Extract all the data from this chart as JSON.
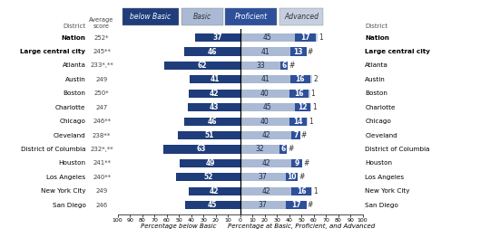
{
  "districts": [
    "Nation",
    "Large central city",
    "Atlanta",
    "Austin",
    "Boston",
    "Charlotte",
    "Chicago",
    "Cleveland",
    "District of Columbia",
    "Houston",
    "Los Angeles",
    "New York City",
    "San Diego"
  ],
  "avg_scores": [
    "252*",
    "245**",
    "233*,**",
    "249",
    "250*",
    "247",
    "246**",
    "238**",
    "232*,**",
    "241**",
    "240**",
    "249",
    "246"
  ],
  "bold_rows": [
    0,
    1
  ],
  "below_basic": [
    37,
    46,
    62,
    41,
    42,
    43,
    46,
    51,
    63,
    49,
    52,
    42,
    45
  ],
  "basic": [
    45,
    41,
    33,
    41,
    40,
    45,
    40,
    42,
    32,
    42,
    37,
    42,
    37
  ],
  "proficient": [
    17,
    13,
    6,
    16,
    16,
    12,
    14,
    7,
    6,
    9,
    10,
    16,
    17
  ],
  "advanced": [
    1,
    null,
    null,
    2,
    1,
    1,
    1,
    null,
    null,
    null,
    null,
    1,
    null
  ],
  "color_below_basic": "#1f3d7a",
  "color_basic": "#aab9d4",
  "color_proficient": "#2e4f9a",
  "color_advanced": "#c5cfe0",
  "bg_score": "#ccd0dd",
  "xlabel_left": "Percentage below Basic",
  "xlabel_right": "Percentage at Basic, Proficient, and Advanced"
}
